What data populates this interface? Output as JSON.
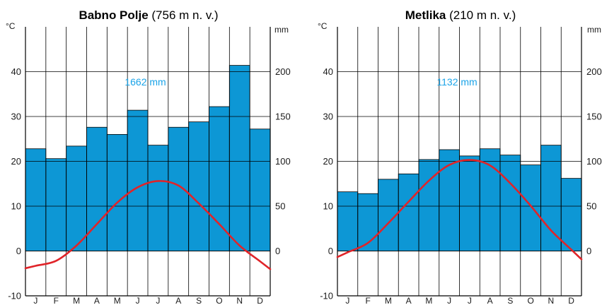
{
  "colors": {
    "precipitation": "#0d97d5",
    "temperature": "#e02429",
    "total_label": "#19a3e8",
    "grid": "#000000"
  },
  "chart_data": [
    {
      "type": "bar",
      "title_bold": "Babno Polje",
      "title_rest": " (756 m n. v.)",
      "left_unit": "°C",
      "right_unit": "mm",
      "total_label": "1662 mm",
      "categories": [
        "J",
        "F",
        "M",
        "A",
        "M",
        "J",
        "J",
        "A",
        "S",
        "O",
        "N",
        "D"
      ],
      "left_ylim": [
        -10,
        50
      ],
      "right_ylim": [
        -50,
        250
      ],
      "left_ticks": [
        -10,
        0,
        10,
        20,
        30,
        40
      ],
      "right_ticks": [
        0,
        50,
        100,
        150,
        200
      ],
      "series": [
        {
          "type": "bar",
          "axis": "right",
          "values": [
            114,
            103,
            117,
            138,
            130,
            157,
            118,
            138,
            144,
            161,
            207,
            136
          ]
        },
        {
          "type": "line",
          "axis": "left",
          "values": [
            -3.3,
            -2.2,
            1.2,
            6.0,
            10.8,
            14.2,
            15.6,
            14.6,
            10.6,
            6.0,
            1.2,
            -2.3
          ]
        }
      ]
    },
    {
      "type": "bar",
      "title_bold": "Metlika",
      "title_rest": " (210 m n. v.)",
      "left_unit": "°C",
      "right_unit": "mm",
      "total_label": "1132 mm",
      "categories": [
        "J",
        "F",
        "M",
        "A",
        "M",
        "J",
        "J",
        "A",
        "S",
        "O",
        "N",
        "D"
      ],
      "left_ylim": [
        -10,
        50
      ],
      "right_ylim": [
        -50,
        250
      ],
      "left_ticks": [
        -10,
        0,
        10,
        20,
        30,
        40
      ],
      "right_ticks": [
        0,
        50,
        100,
        150,
        200
      ],
      "series": [
        {
          "type": "bar",
          "axis": "right",
          "values": [
            66,
            64,
            80,
            86,
            102,
            113,
            106,
            114,
            107,
            96,
            118,
            81
          ]
        },
        {
          "type": "line",
          "axis": "left",
          "values": [
            -0.3,
            1.8,
            6.2,
            11.0,
            15.7,
            19.2,
            20.3,
            19.1,
            15.1,
            10.1,
            4.6,
            0.3
          ]
        }
      ]
    }
  ]
}
